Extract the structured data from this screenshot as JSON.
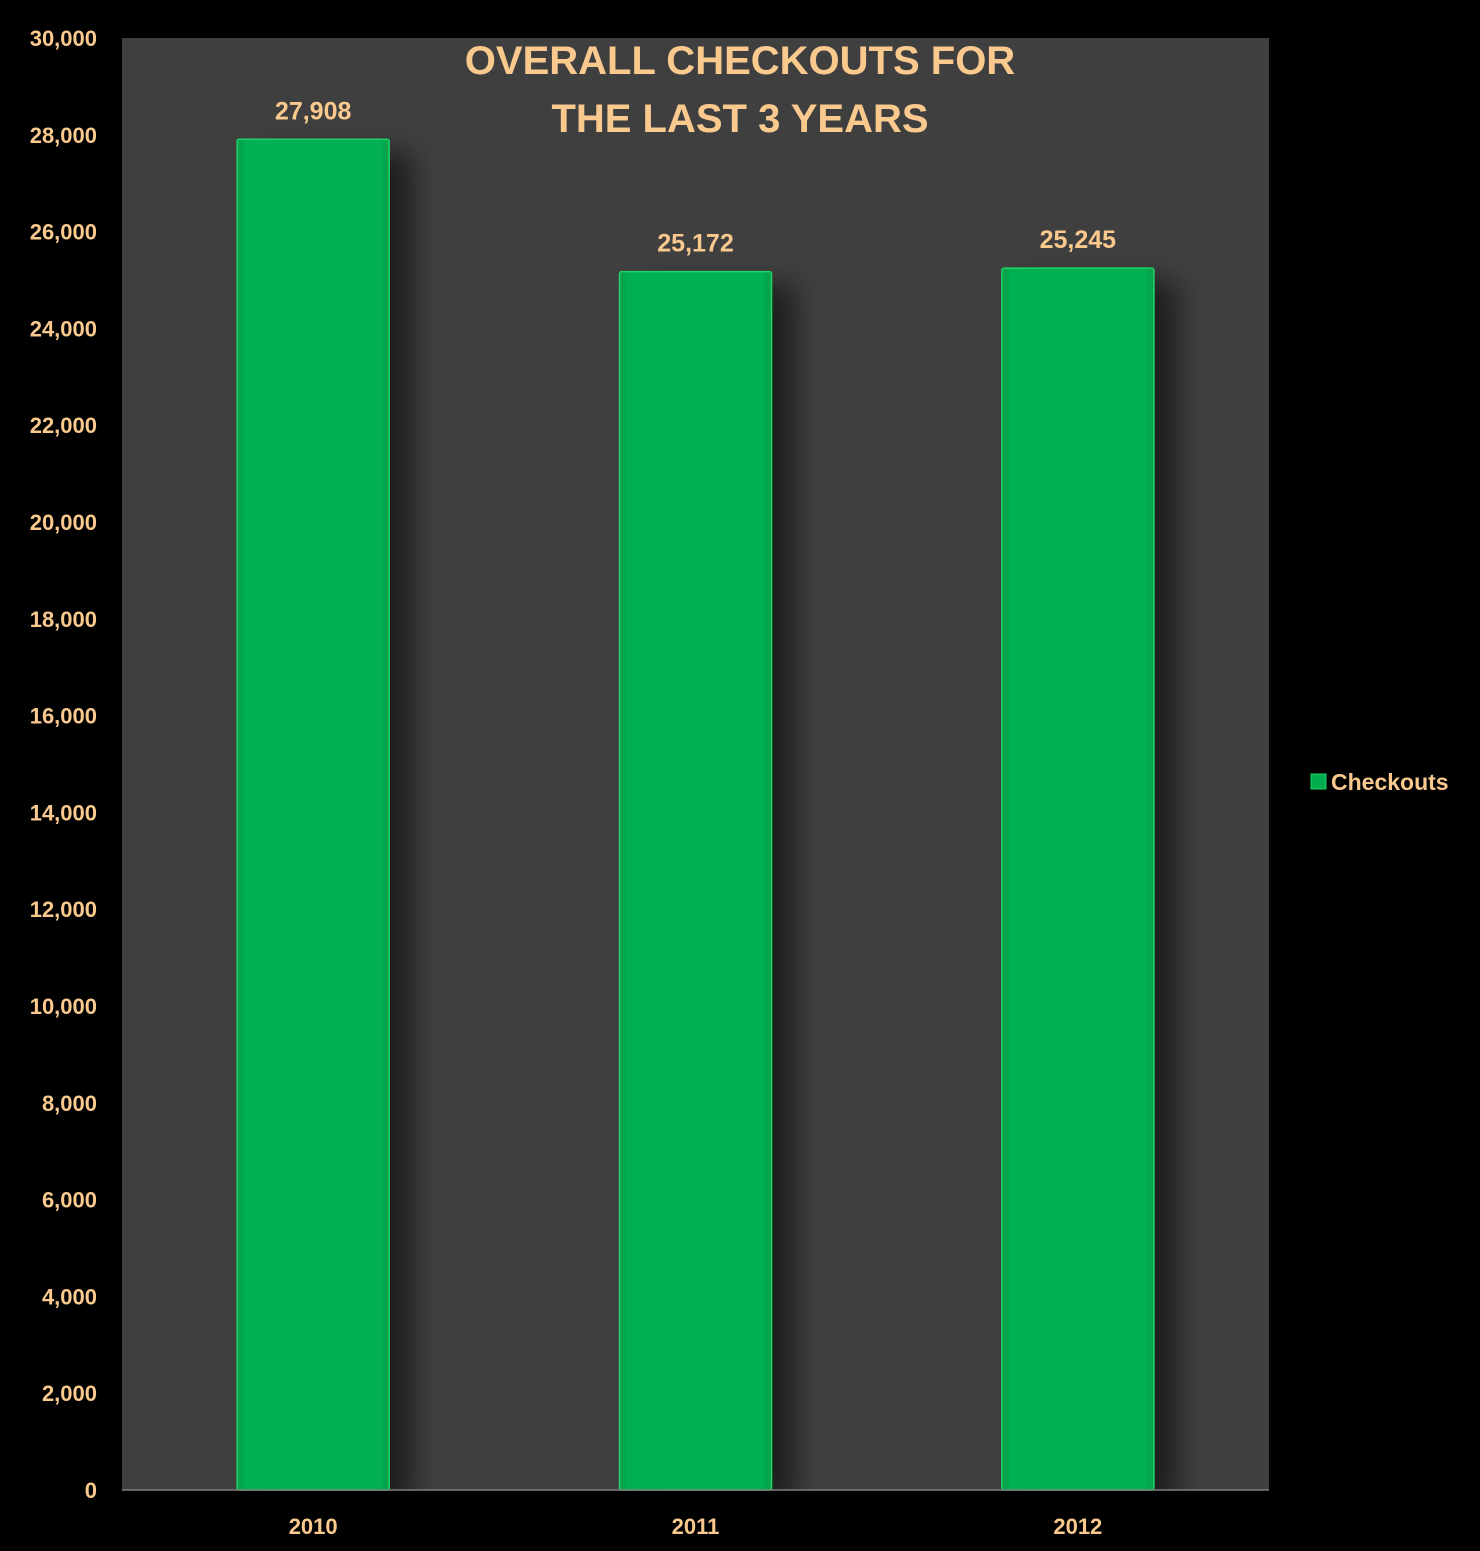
{
  "colors": {
    "background": "#000000",
    "plot_area": "#3f3f3f",
    "bar_fill": "#00ad4e",
    "bar_edge": "#1ed468",
    "text_accent": "#fac98e"
  },
  "chart_data": {
    "type": "bar",
    "title_lines": [
      "OVERALL CHECKOUTS FOR",
      "THE LAST 3 YEARS"
    ],
    "categories": [
      "2010",
      "2011",
      "2012"
    ],
    "series": [
      {
        "name": "Checkouts",
        "values": [
          27908,
          25172,
          25245
        ]
      }
    ],
    "data_labels": [
      "27,908",
      "25,172",
      "25,245"
    ],
    "ylim": [
      0,
      30000
    ],
    "yticks": [
      "0",
      "2,000",
      "4,000",
      "6,000",
      "8,000",
      "10,000",
      "12,000",
      "14,000",
      "16,000",
      "18,000",
      "20,000",
      "22,000",
      "24,000",
      "26,000",
      "28,000",
      "30,000"
    ],
    "xlabel": "",
    "ylabel": "",
    "grid": false,
    "legend_position": "right"
  }
}
